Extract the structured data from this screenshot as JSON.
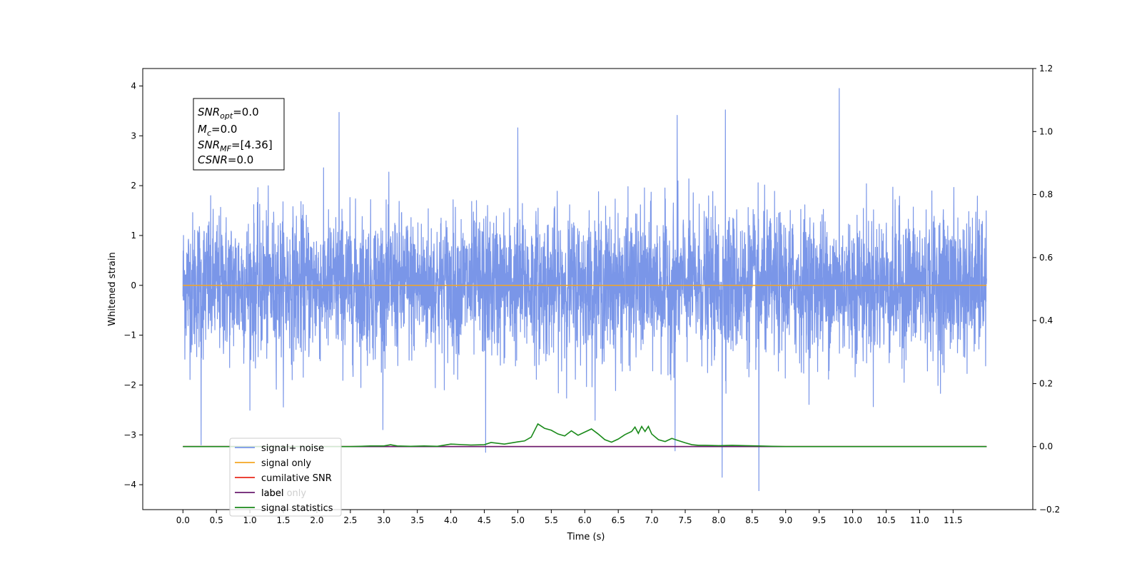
{
  "chart_data": {
    "type": "line",
    "title": "",
    "xlabel": "Time (s)",
    "ylabel": "Whitened strain",
    "xlim": [
      -0.6,
      12.69
    ],
    "ylim": [
      -4.5,
      4.35
    ],
    "y2lim": [
      -0.2,
      1.2
    ],
    "grid": false,
    "legend_position": "lower-left",
    "x_ticks": [
      0.0,
      0.5,
      1.0,
      1.5,
      2.0,
      2.5,
      3.0,
      3.5,
      4.0,
      4.5,
      5.0,
      5.5,
      6.0,
      6.5,
      7.0,
      7.5,
      8.0,
      8.5,
      9.0,
      9.5,
      10.0,
      10.5,
      11.0,
      11.5
    ],
    "x_tick_labels": [
      "0.0",
      "0.5",
      "1.0",
      "1.5",
      "2.0",
      "2.5",
      "3.0",
      "3.5",
      "4.0",
      "4.5",
      "5.0",
      "5.5",
      "6.0",
      "6.5",
      "7.0",
      "7.5",
      "8.0",
      "8.5",
      "9.0",
      "9.5",
      "10.0",
      "10.5",
      "11.0",
      "11.5"
    ],
    "y_ticks": [
      4,
      3,
      2,
      1,
      0,
      -1,
      -2,
      -3,
      -4
    ],
    "y_tick_labels": [
      "4",
      "3",
      "2",
      "1",
      "0",
      "−1",
      "−2",
      "−3",
      "−4"
    ],
    "y2_ticks": [
      1.2,
      1.0,
      0.8,
      0.6,
      0.4,
      0.2,
      0.0,
      -0.2
    ],
    "y2_tick_labels": [
      "1.2",
      "1.0",
      "0.8",
      "0.6",
      "0.4",
      "0.2",
      "0.0",
      "−0.2"
    ],
    "legend": [
      "signal+ noise",
      "signal only",
      "cumilative SNR",
      "label",
      "signal statistics"
    ],
    "legend_overlap_text": "label only",
    "annotation": {
      "lines": [
        {
          "base": "SNR",
          "sub": "opt",
          "rest": "=0.0"
        },
        {
          "base": "M",
          "sub": "c",
          "rest": "=0.0"
        },
        {
          "base": "SNR",
          "sub": "MF",
          "rest": "=[4.36]"
        },
        {
          "base": "CSNR",
          "sub": "",
          "rest": "=0.0"
        }
      ]
    },
    "series": [
      {
        "name": "signal+ noise",
        "axis": "left",
        "color": "#7a96e8",
        "description": "dense whitened strain noise between 0.0 and 12.0 s",
        "x_range": [
          0.0,
          12.0
        ],
        "amplitude_envelope": [
          -3.0,
          3.0
        ],
        "notable_peaks": [
          {
            "x": 0.27,
            "y": -3.2
          },
          {
            "x": 2.33,
            "y": 3.47
          },
          {
            "x": 4.52,
            "y": -3.35
          },
          {
            "x": 5.0,
            "y": 3.16
          },
          {
            "x": 7.38,
            "y": 3.41
          },
          {
            "x": 7.35,
            "y": -3.32
          },
          {
            "x": 8.05,
            "y": -3.85
          },
          {
            "x": 8.1,
            "y": 3.52
          },
          {
            "x": 8.6,
            "y": -4.12
          },
          {
            "x": 9.8,
            "y": 3.95
          }
        ]
      },
      {
        "name": "signal only",
        "axis": "left",
        "color": "#f5a623",
        "x": [
          0.0,
          12.0
        ],
        "y": [
          0.0,
          0.0
        ]
      },
      {
        "name": "cumilative SNR",
        "axis": "right",
        "color": "#e8291c",
        "x": [
          0.0,
          12.0
        ],
        "y": [
          0.0,
          0.0
        ]
      },
      {
        "name": "label",
        "axis": "right",
        "color": "#6a1b6f",
        "x": [
          0.0,
          12.0
        ],
        "y": [
          0.0,
          0.0
        ]
      },
      {
        "name": "signal statistics",
        "axis": "right",
        "color": "#1a8a1a",
        "x": [
          0.0,
          2.5,
          2.8,
          3.0,
          3.1,
          3.2,
          3.4,
          3.6,
          3.8,
          4.0,
          4.1,
          4.3,
          4.5,
          4.6,
          4.8,
          5.0,
          5.1,
          5.2,
          5.3,
          5.4,
          5.5,
          5.6,
          5.7,
          5.8,
          5.9,
          6.0,
          6.1,
          6.2,
          6.3,
          6.4,
          6.5,
          6.6,
          6.7,
          6.75,
          6.8,
          6.85,
          6.9,
          6.95,
          7.0,
          7.1,
          7.2,
          7.3,
          7.4,
          7.5,
          7.6,
          7.7,
          7.8,
          8.0,
          8.2,
          8.4,
          8.6,
          8.8,
          9.0,
          12.0
        ],
        "y": [
          0.0,
          0.0,
          0.002,
          0.002,
          0.006,
          0.002,
          0.001,
          0.002,
          0.001,
          0.008,
          0.007,
          0.005,
          0.006,
          0.013,
          0.008,
          0.015,
          0.018,
          0.03,
          0.072,
          0.058,
          0.052,
          0.04,
          0.034,
          0.05,
          0.036,
          0.046,
          0.056,
          0.04,
          0.022,
          0.014,
          0.024,
          0.038,
          0.048,
          0.062,
          0.042,
          0.064,
          0.048,
          0.064,
          0.04,
          0.022,
          0.016,
          0.026,
          0.019,
          0.012,
          0.006,
          0.004,
          0.004,
          0.003,
          0.004,
          0.003,
          0.002,
          0.001,
          0.0,
          0.0
        ]
      }
    ]
  }
}
